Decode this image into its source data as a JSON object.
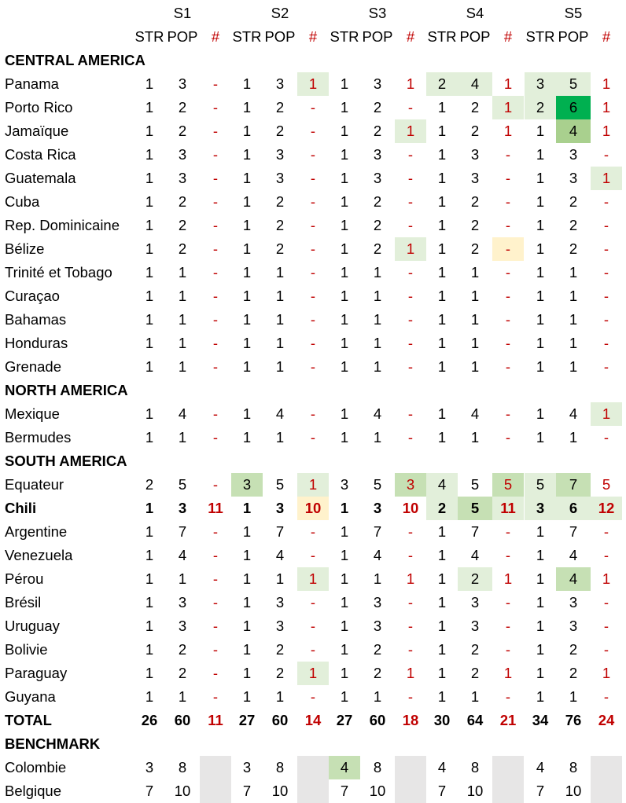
{
  "colors": {
    "l1": "#e2efda",
    "l2": "#c6e0b4",
    "l3": "#a9d08e",
    "dk": "#00b050",
    "yl": "#fff2cc",
    "gr": "#e7e6e6",
    "hash_text": "#c00000"
  },
  "header": {
    "sprints": [
      "S1",
      "S2",
      "S3",
      "S4",
      "S5"
    ],
    "sub": [
      "STR",
      "POP",
      "#"
    ]
  },
  "rows": [
    {
      "kind": "section",
      "label": "CENTRAL AMERICA"
    },
    {
      "kind": "data",
      "label": "Panama",
      "v": [
        "1",
        "3",
        "-",
        "1",
        "3",
        "1",
        "1",
        "3",
        "1",
        "2",
        "4",
        "1",
        "3",
        "5",
        "1"
      ],
      "bg": [
        null,
        null,
        null,
        null,
        null,
        "l1",
        null,
        null,
        null,
        "l1",
        "l1",
        null,
        "l1",
        "l1",
        null
      ]
    },
    {
      "kind": "data",
      "label": "Porto Rico",
      "v": [
        "1",
        "2",
        "-",
        "1",
        "2",
        "-",
        "1",
        "2",
        "-",
        "1",
        "2",
        "1",
        "2",
        "6",
        "1"
      ],
      "bg": [
        null,
        null,
        null,
        null,
        null,
        null,
        null,
        null,
        null,
        null,
        null,
        "l1",
        "l1",
        "dk",
        null
      ]
    },
    {
      "kind": "data",
      "label": "Jamaïque",
      "v": [
        "1",
        "2",
        "-",
        "1",
        "2",
        "-",
        "1",
        "2",
        "1",
        "1",
        "2",
        "1",
        "1",
        "4",
        "1"
      ],
      "bg": [
        null,
        null,
        null,
        null,
        null,
        null,
        null,
        null,
        "l1",
        null,
        null,
        null,
        null,
        "l3",
        null
      ]
    },
    {
      "kind": "data",
      "label": "Costa Rica",
      "v": [
        "1",
        "3",
        "-",
        "1",
        "3",
        "-",
        "1",
        "3",
        "-",
        "1",
        "3",
        "-",
        "1",
        "3",
        "-"
      ],
      "bg": [
        null,
        null,
        null,
        null,
        null,
        null,
        null,
        null,
        null,
        null,
        null,
        null,
        null,
        null,
        null
      ]
    },
    {
      "kind": "data",
      "label": "Guatemala",
      "v": [
        "1",
        "3",
        "-",
        "1",
        "3",
        "-",
        "1",
        "3",
        "-",
        "1",
        "3",
        "-",
        "1",
        "3",
        "1"
      ],
      "bg": [
        null,
        null,
        null,
        null,
        null,
        null,
        null,
        null,
        null,
        null,
        null,
        null,
        null,
        null,
        "l1"
      ]
    },
    {
      "kind": "data",
      "label": "Cuba",
      "v": [
        "1",
        "2",
        "-",
        "1",
        "2",
        "-",
        "1",
        "2",
        "-",
        "1",
        "2",
        "-",
        "1",
        "2",
        "-"
      ],
      "bg": [
        null,
        null,
        null,
        null,
        null,
        null,
        null,
        null,
        null,
        null,
        null,
        null,
        null,
        null,
        null
      ]
    },
    {
      "kind": "data",
      "label": "Rep. Dominicaine",
      "v": [
        "1",
        "2",
        "-",
        "1",
        "2",
        "-",
        "1",
        "2",
        "-",
        "1",
        "2",
        "-",
        "1",
        "2",
        "-"
      ],
      "bg": [
        null,
        null,
        null,
        null,
        null,
        null,
        null,
        null,
        null,
        null,
        null,
        null,
        null,
        null,
        null
      ]
    },
    {
      "kind": "data",
      "label": "Bélize",
      "v": [
        "1",
        "2",
        "-",
        "1",
        "2",
        "-",
        "1",
        "2",
        "1",
        "1",
        "2",
        "-",
        "1",
        "2",
        "-"
      ],
      "bg": [
        null,
        null,
        null,
        null,
        null,
        null,
        null,
        null,
        "l1",
        null,
        null,
        "yl",
        null,
        null,
        null
      ]
    },
    {
      "kind": "data",
      "label": "Trinité et Tobago",
      "v": [
        "1",
        "1",
        "-",
        "1",
        "1",
        "-",
        "1",
        "1",
        "-",
        "1",
        "1",
        "-",
        "1",
        "1",
        "-"
      ],
      "bg": [
        null,
        null,
        null,
        null,
        null,
        null,
        null,
        null,
        null,
        null,
        null,
        null,
        null,
        null,
        null
      ]
    },
    {
      "kind": "data",
      "label": "Curaçao",
      "v": [
        "1",
        "1",
        "-",
        "1",
        "1",
        "-",
        "1",
        "1",
        "-",
        "1",
        "1",
        "-",
        "1",
        "1",
        "-"
      ],
      "bg": [
        null,
        null,
        null,
        null,
        null,
        null,
        null,
        null,
        null,
        null,
        null,
        null,
        null,
        null,
        null
      ]
    },
    {
      "kind": "data",
      "label": "Bahamas",
      "v": [
        "1",
        "1",
        "-",
        "1",
        "1",
        "-",
        "1",
        "1",
        "-",
        "1",
        "1",
        "-",
        "1",
        "1",
        "-"
      ],
      "bg": [
        null,
        null,
        null,
        null,
        null,
        null,
        null,
        null,
        null,
        null,
        null,
        null,
        null,
        null,
        null
      ]
    },
    {
      "kind": "data",
      "label": "Honduras",
      "v": [
        "1",
        "1",
        "-",
        "1",
        "1",
        "-",
        "1",
        "1",
        "-",
        "1",
        "1",
        "-",
        "1",
        "1",
        "-"
      ],
      "bg": [
        null,
        null,
        null,
        null,
        null,
        null,
        null,
        null,
        null,
        null,
        null,
        null,
        null,
        null,
        null
      ]
    },
    {
      "kind": "data",
      "label": "Grenade",
      "v": [
        "1",
        "1",
        "-",
        "1",
        "1",
        "-",
        "1",
        "1",
        "-",
        "1",
        "1",
        "-",
        "1",
        "1",
        "-"
      ],
      "bg": [
        null,
        null,
        null,
        null,
        null,
        null,
        null,
        null,
        null,
        null,
        null,
        null,
        null,
        null,
        null
      ]
    },
    {
      "kind": "section",
      "label": "NORTH AMERICA"
    },
    {
      "kind": "data",
      "label": "Mexique",
      "v": [
        "1",
        "4",
        "-",
        "1",
        "4",
        "-",
        "1",
        "4",
        "-",
        "1",
        "4",
        "-",
        "1",
        "4",
        "1"
      ],
      "bg": [
        null,
        null,
        null,
        null,
        null,
        null,
        null,
        null,
        null,
        null,
        null,
        null,
        null,
        null,
        "l1"
      ]
    },
    {
      "kind": "data",
      "label": "Bermudes",
      "v": [
        "1",
        "1",
        "-",
        "1",
        "1",
        "-",
        "1",
        "1",
        "-",
        "1",
        "1",
        "-",
        "1",
        "1",
        "-"
      ],
      "bg": [
        null,
        null,
        null,
        null,
        null,
        null,
        null,
        null,
        null,
        null,
        null,
        null,
        null,
        null,
        null
      ]
    },
    {
      "kind": "section",
      "label": "SOUTH AMERICA"
    },
    {
      "kind": "data",
      "label": "Equateur",
      "v": [
        "2",
        "5",
        "-",
        "3",
        "5",
        "1",
        "3",
        "5",
        "3",
        "4",
        "5",
        "5",
        "5",
        "7",
        "5"
      ],
      "bg": [
        null,
        null,
        null,
        "l2",
        null,
        "l1",
        null,
        null,
        "l2",
        "l1",
        null,
        "l2",
        "l1",
        "l2",
        null
      ]
    },
    {
      "kind": "data",
      "label": "Chili",
      "bold": true,
      "v": [
        "1",
        "3",
        "11",
        "1",
        "3",
        "10",
        "1",
        "3",
        "10",
        "2",
        "5",
        "11",
        "3",
        "6",
        "12"
      ],
      "bg": [
        null,
        null,
        null,
        null,
        null,
        "yl",
        null,
        null,
        null,
        "l1",
        "l2",
        "l1",
        "l1",
        "l1",
        "l1"
      ]
    },
    {
      "kind": "data",
      "label": "Argentine",
      "v": [
        "1",
        "7",
        "-",
        "1",
        "7",
        "-",
        "1",
        "7",
        "-",
        "1",
        "7",
        "-",
        "1",
        "7",
        "-"
      ],
      "bg": [
        null,
        null,
        null,
        null,
        null,
        null,
        null,
        null,
        null,
        null,
        null,
        null,
        null,
        null,
        null
      ]
    },
    {
      "kind": "data",
      "label": "Venezuela",
      "v": [
        "1",
        "4",
        "-",
        "1",
        "4",
        "-",
        "1",
        "4",
        "-",
        "1",
        "4",
        "-",
        "1",
        "4",
        "-"
      ],
      "bg": [
        null,
        null,
        null,
        null,
        null,
        null,
        null,
        null,
        null,
        null,
        null,
        null,
        null,
        null,
        null
      ]
    },
    {
      "kind": "data",
      "label": "Pérou",
      "v": [
        "1",
        "1",
        "-",
        "1",
        "1",
        "1",
        "1",
        "1",
        "1",
        "1",
        "2",
        "1",
        "1",
        "4",
        "1"
      ],
      "bg": [
        null,
        null,
        null,
        null,
        null,
        "l1",
        null,
        null,
        null,
        null,
        "l1",
        null,
        null,
        "l2",
        null
      ]
    },
    {
      "kind": "data",
      "label": "Brésil",
      "v": [
        "1",
        "3",
        "-",
        "1",
        "3",
        "-",
        "1",
        "3",
        "-",
        "1",
        "3",
        "-",
        "1",
        "3",
        "-"
      ],
      "bg": [
        null,
        null,
        null,
        null,
        null,
        null,
        null,
        null,
        null,
        null,
        null,
        null,
        null,
        null,
        null
      ]
    },
    {
      "kind": "data",
      "label": "Uruguay",
      "v": [
        "1",
        "3",
        "-",
        "1",
        "3",
        "-",
        "1",
        "3",
        "-",
        "1",
        "3",
        "-",
        "1",
        "3",
        "-"
      ],
      "bg": [
        null,
        null,
        null,
        null,
        null,
        null,
        null,
        null,
        null,
        null,
        null,
        null,
        null,
        null,
        null
      ]
    },
    {
      "kind": "data",
      "label": "Bolivie",
      "v": [
        "1",
        "2",
        "-",
        "1",
        "2",
        "-",
        "1",
        "2",
        "-",
        "1",
        "2",
        "-",
        "1",
        "2",
        "-"
      ],
      "bg": [
        null,
        null,
        null,
        null,
        null,
        null,
        null,
        null,
        null,
        null,
        null,
        null,
        null,
        null,
        null
      ]
    },
    {
      "kind": "data",
      "label": "Paraguay",
      "v": [
        "1",
        "2",
        "-",
        "1",
        "2",
        "1",
        "1",
        "2",
        "1",
        "1",
        "2",
        "1",
        "1",
        "2",
        "1"
      ],
      "bg": [
        null,
        null,
        null,
        null,
        null,
        "l1",
        null,
        null,
        null,
        null,
        null,
        null,
        null,
        null,
        null
      ]
    },
    {
      "kind": "data",
      "label": "Guyana",
      "v": [
        "1",
        "1",
        "-",
        "1",
        "1",
        "-",
        "1",
        "1",
        "-",
        "1",
        "1",
        "-",
        "1",
        "1",
        "-"
      ],
      "bg": [
        null,
        null,
        null,
        null,
        null,
        null,
        null,
        null,
        null,
        null,
        null,
        null,
        null,
        null,
        null
      ]
    },
    {
      "kind": "total",
      "label": "TOTAL",
      "bold": true,
      "v": [
        "26",
        "60",
        "11",
        "27",
        "60",
        "14",
        "27",
        "60",
        "18",
        "30",
        "64",
        "21",
        "34",
        "76",
        "24"
      ],
      "bg": [
        null,
        null,
        null,
        null,
        null,
        null,
        null,
        null,
        null,
        null,
        null,
        null,
        null,
        null,
        null
      ]
    },
    {
      "kind": "section",
      "label": "BENCHMARK"
    },
    {
      "kind": "data",
      "label": "Colombie",
      "v": [
        "3",
        "8",
        "",
        "3",
        "8",
        "",
        "4",
        "8",
        "",
        "4",
        "8",
        "",
        "4",
        "8",
        ""
      ],
      "bg": [
        null,
        null,
        "gr",
        null,
        null,
        "gr",
        "l2",
        null,
        "gr",
        null,
        null,
        "gr",
        null,
        null,
        "gr"
      ]
    },
    {
      "kind": "data",
      "label": "Belgique",
      "v": [
        "7",
        "10",
        "",
        "7",
        "10",
        "",
        "7",
        "10",
        "",
        "7",
        "10",
        "",
        "7",
        "10",
        ""
      ],
      "bg": [
        null,
        null,
        "gr",
        null,
        null,
        "gr",
        null,
        null,
        "gr",
        null,
        null,
        "gr",
        null,
        null,
        "gr"
      ]
    }
  ]
}
